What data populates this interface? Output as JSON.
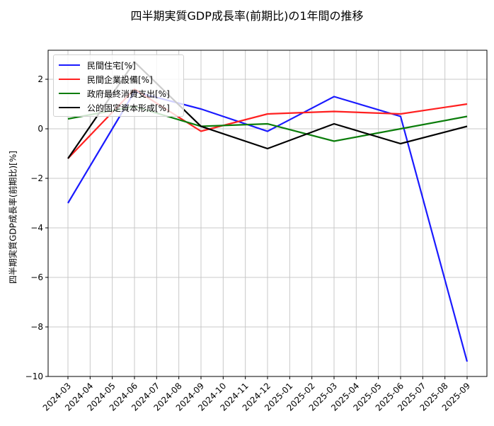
{
  "chart_data": {
    "type": "line",
    "title": "四半期実質GDP成長率(前期比)の1年間の推移",
    "xlabel": "",
    "ylabel": "四半期実質GDP成長率(前期比)[%]",
    "ylim": [
      -10,
      3.2
    ],
    "yticks": [
      -10,
      -8,
      -6,
      -4,
      -2,
      0,
      2
    ],
    "xtick_labels": [
      "2024-03",
      "2024-04",
      "2024-05",
      "2024-06",
      "2024-07",
      "2024-08",
      "2024-09",
      "2024-10",
      "2024-11",
      "2024-12",
      "2025-01",
      "2025-02",
      "2025-03",
      "2025-04",
      "2025-05",
      "2025-06",
      "2025-07",
      "2025-08",
      "2025-09"
    ],
    "grid": true,
    "legend_position": "upper left",
    "x": [
      "2024-03",
      "2024-06",
      "2024-09",
      "2024-12",
      "2025-03",
      "2025-06",
      "2025-09"
    ],
    "series": [
      {
        "name": "民間住宅[%]",
        "color": "#0000ff",
        "values": [
          -3.0,
          1.5,
          0.8,
          -0.1,
          1.3,
          0.5,
          -9.4
        ]
      },
      {
        "name": "民間企業設備[%]",
        "color": "#ff0000",
        "values": [
          -1.2,
          1.6,
          -0.1,
          0.6,
          0.7,
          0.6,
          1.0
        ]
      },
      {
        "name": "政府最終消費支出[%]",
        "color": "#008000",
        "values": [
          0.4,
          0.9,
          0.1,
          0.2,
          -0.5,
          0.0,
          0.5
        ]
      },
      {
        "name": "公的固定資本形成[%]",
        "color": "#000000",
        "values": [
          -1.2,
          2.7,
          0.1,
          -0.8,
          0.2,
          -0.6,
          0.1
        ]
      }
    ]
  }
}
